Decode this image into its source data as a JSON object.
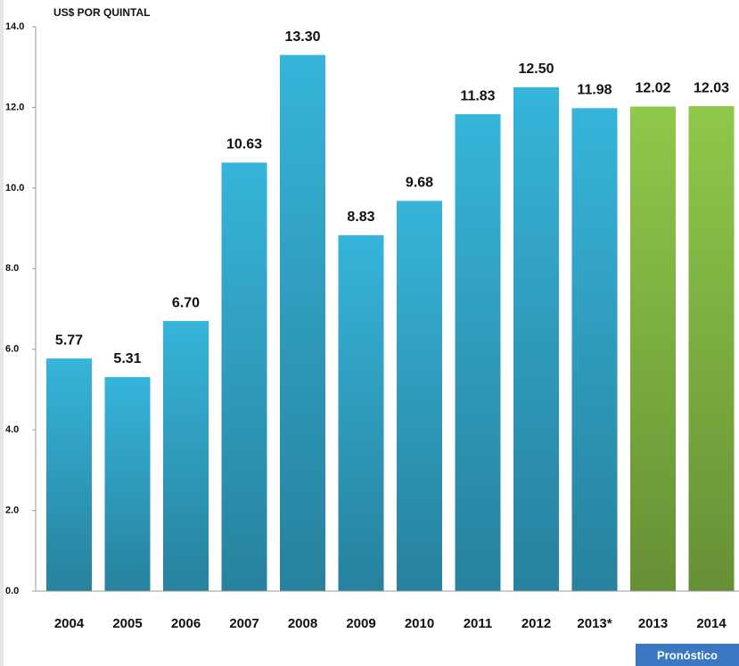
{
  "chart_data": {
    "type": "bar",
    "y_axis_label": "US$ POR QUINTAL",
    "categories": [
      "2004",
      "2005",
      "2006",
      "2007",
      "2008",
      "2009",
      "2010",
      "2011",
      "2012",
      "2013*",
      "2013",
      "2014"
    ],
    "values": [
      5.77,
      5.31,
      6.7,
      10.63,
      13.3,
      8.83,
      9.68,
      11.83,
      12.5,
      11.98,
      12.02,
      12.03
    ],
    "value_labels": [
      "5.77",
      "5.31",
      "6.70",
      "10.63",
      "13.30",
      "8.83",
      "9.68",
      "11.83",
      "12.50",
      "11.98",
      "12.02",
      "12.03"
    ],
    "colors": [
      "#36b4da",
      "#36b4da",
      "#36b4da",
      "#36b4da",
      "#36b4da",
      "#36b4da",
      "#36b4da",
      "#36b4da",
      "#36b4da",
      "#36b4da",
      "#8fc84a",
      "#8fc84a"
    ],
    "ylim": [
      0,
      14
    ],
    "yticks": [
      {
        "value": 0,
        "label": "0.0"
      },
      {
        "value": 2,
        "label": "2.0"
      },
      {
        "value": 4,
        "label": "4.0"
      },
      {
        "value": 6,
        "label": "6.0"
      },
      {
        "value": 8,
        "label": "8.0"
      },
      {
        "value": 10,
        "label": "10.0"
      },
      {
        "value": 12,
        "label": "12.0"
      },
      {
        "value": 14,
        "label": "14.0"
      }
    ],
    "annotation": "Pronóstico"
  }
}
